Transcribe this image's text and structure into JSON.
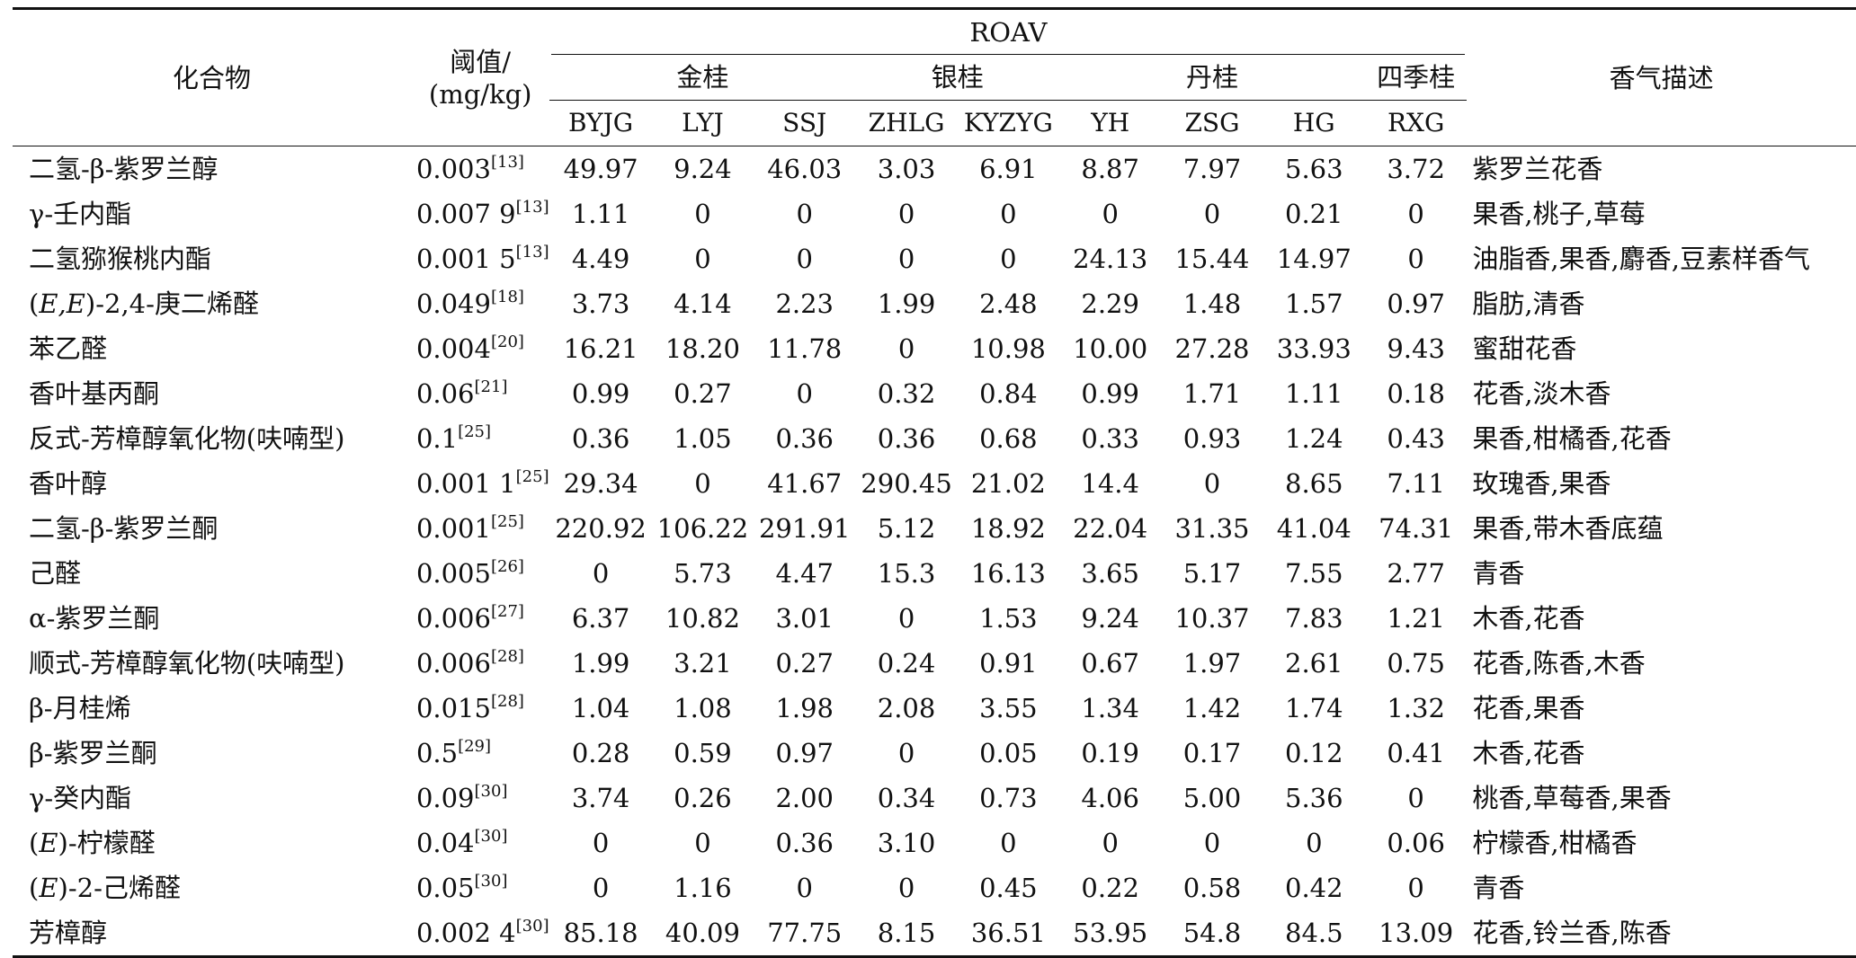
{
  "header": {
    "compound": "化合物",
    "threshold_line1": "阈值/",
    "threshold_line2": "(mg/kg)",
    "roav": "ROAV",
    "description": "香气描述",
    "groups": [
      {
        "label": "金桂",
        "span": 3
      },
      {
        "label": "银桂",
        "span": 2
      },
      {
        "label": "丹桂",
        "span": 3
      },
      {
        "label": "四季桂",
        "span": 1
      }
    ],
    "cultivars": [
      "BYJG",
      "LYJ",
      "SSJ",
      "ZHLG",
      "KYZYG",
      "YH",
      "ZSG",
      "HG",
      "RXG"
    ]
  },
  "rows": [
    {
      "name": "二氢-β-紫罗兰醇",
      "threshold": "0.003",
      "ref": "[13]",
      "values": [
        "49.97",
        "9.24",
        "46.03",
        "3.03",
        "6.91",
        "8.87",
        "7.97",
        "5.63",
        "3.72"
      ],
      "desc": "紫罗兰花香"
    },
    {
      "name": "γ-壬内酯",
      "threshold": "0.007 9",
      "ref": "[13]",
      "values": [
        "1.11",
        "0",
        "0",
        "0",
        "0",
        "0",
        "0",
        "0.21",
        "0"
      ],
      "desc": "果香,桃子,草莓"
    },
    {
      "name": "二氢猕猴桃内酯",
      "threshold": "0.001 5",
      "ref": "[13]",
      "values": [
        "4.49",
        "0",
        "0",
        "0",
        "0",
        "24.13",
        "15.44",
        "14.97",
        "0"
      ],
      "desc": "油脂香,果香,麝香,豆素样香气"
    },
    {
      "name": "(E,E)-2,4-庚二烯醛",
      "threshold": "0.049",
      "ref": "[18]",
      "values": [
        "3.73",
        "4.14",
        "2.23",
        "1.99",
        "2.48",
        "2.29",
        "1.48",
        "1.57",
        "0.97"
      ],
      "desc": "脂肪,清香"
    },
    {
      "name": "苯乙醛",
      "threshold": "0.004",
      "ref": "[20]",
      "values": [
        "16.21",
        "18.20",
        "11.78",
        "0",
        "10.98",
        "10.00",
        "27.28",
        "33.93",
        "9.43"
      ],
      "desc": "蜜甜花香"
    },
    {
      "name": "香叶基丙酮",
      "threshold": "0.06",
      "ref": "[21]",
      "values": [
        "0.99",
        "0.27",
        "0",
        "0.32",
        "0.84",
        "0.99",
        "1.71",
        "1.11",
        "0.18"
      ],
      "desc": "花香,淡木香"
    },
    {
      "name": "反式-芳樟醇氧化物(呋喃型)",
      "threshold": "0.1",
      "ref": "[25]",
      "values": [
        "0.36",
        "1.05",
        "0.36",
        "0.36",
        "0.68",
        "0.33",
        "0.93",
        "1.24",
        "0.43"
      ],
      "desc": "果香,柑橘香,花香"
    },
    {
      "name": "香叶醇",
      "threshold": "0.001 1",
      "ref": "[25]",
      "values": [
        "29.34",
        "0",
        "41.67",
        "290.45",
        "21.02",
        "14.4",
        "0",
        "8.65",
        "7.11"
      ],
      "desc": "玫瑰香,果香"
    },
    {
      "name": "二氢-β-紫罗兰酮",
      "threshold": "0.001",
      "ref": "[25]",
      "values": [
        "220.92",
        "106.22",
        "291.91",
        "5.12",
        "18.92",
        "22.04",
        "31.35",
        "41.04",
        "74.31"
      ],
      "desc": "果香,带木香底蕴"
    },
    {
      "name": "己醛",
      "threshold": "0.005",
      "ref": "[26]",
      "values": [
        "0",
        "5.73",
        "4.47",
        "15.3",
        "16.13",
        "3.65",
        "5.17",
        "7.55",
        "2.77"
      ],
      "desc": "青香"
    },
    {
      "name": "α-紫罗兰酮",
      "threshold": "0.006",
      "ref": "[27]",
      "values": [
        "6.37",
        "10.82",
        "3.01",
        "0",
        "1.53",
        "9.24",
        "10.37",
        "7.83",
        "1.21"
      ],
      "desc": "木香,花香"
    },
    {
      "name": "顺式-芳樟醇氧化物(呋喃型)",
      "threshold": "0.006",
      "ref": "[28]",
      "values": [
        "1.99",
        "3.21",
        "0.27",
        "0.24",
        "0.91",
        "0.67",
        "1.97",
        "2.61",
        "0.75"
      ],
      "desc": "花香,陈香,木香"
    },
    {
      "name": "β-月桂烯",
      "threshold": "0.015",
      "ref": "[28]",
      "values": [
        "1.04",
        "1.08",
        "1.98",
        "2.08",
        "3.55",
        "1.34",
        "1.42",
        "1.74",
        "1.32"
      ],
      "desc": "花香,果香"
    },
    {
      "name": "β-紫罗兰酮",
      "threshold": "0.5",
      "ref": "[29]",
      "values": [
        "0.28",
        "0.59",
        "0.97",
        "0",
        "0.05",
        "0.19",
        "0.17",
        "0.12",
        "0.41"
      ],
      "desc": "木香,花香"
    },
    {
      "name": "γ-癸内酯",
      "threshold": "0.09",
      "ref": "[30]",
      "values": [
        "3.74",
        "0.26",
        "2.00",
        "0.34",
        "0.73",
        "4.06",
        "5.00",
        "5.36",
        "0"
      ],
      "desc": "桃香,草莓香,果香"
    },
    {
      "name": "(E)-柠檬醛",
      "threshold": "0.04",
      "ref": "[30]",
      "values": [
        "0",
        "0",
        "0.36",
        "3.10",
        "0",
        "0",
        "0",
        "0",
        "0.06"
      ],
      "desc": "柠檬香,柑橘香"
    },
    {
      "name": "(E)-2-己烯醛",
      "threshold": "0.05",
      "ref": "[30]",
      "values": [
        "0",
        "1.16",
        "0",
        "0",
        "0.45",
        "0.22",
        "0.58",
        "0.42",
        "0"
      ],
      "desc": "青香"
    },
    {
      "name": "芳樟醇",
      "threshold": "0.002 4",
      "ref": "[30]",
      "values": [
        "85.18",
        "40.09",
        "77.75",
        "8.15",
        "36.51",
        "53.95",
        "54.8",
        "84.5",
        "13.09"
      ],
      "desc": "花香,铃兰香,陈香"
    }
  ]
}
